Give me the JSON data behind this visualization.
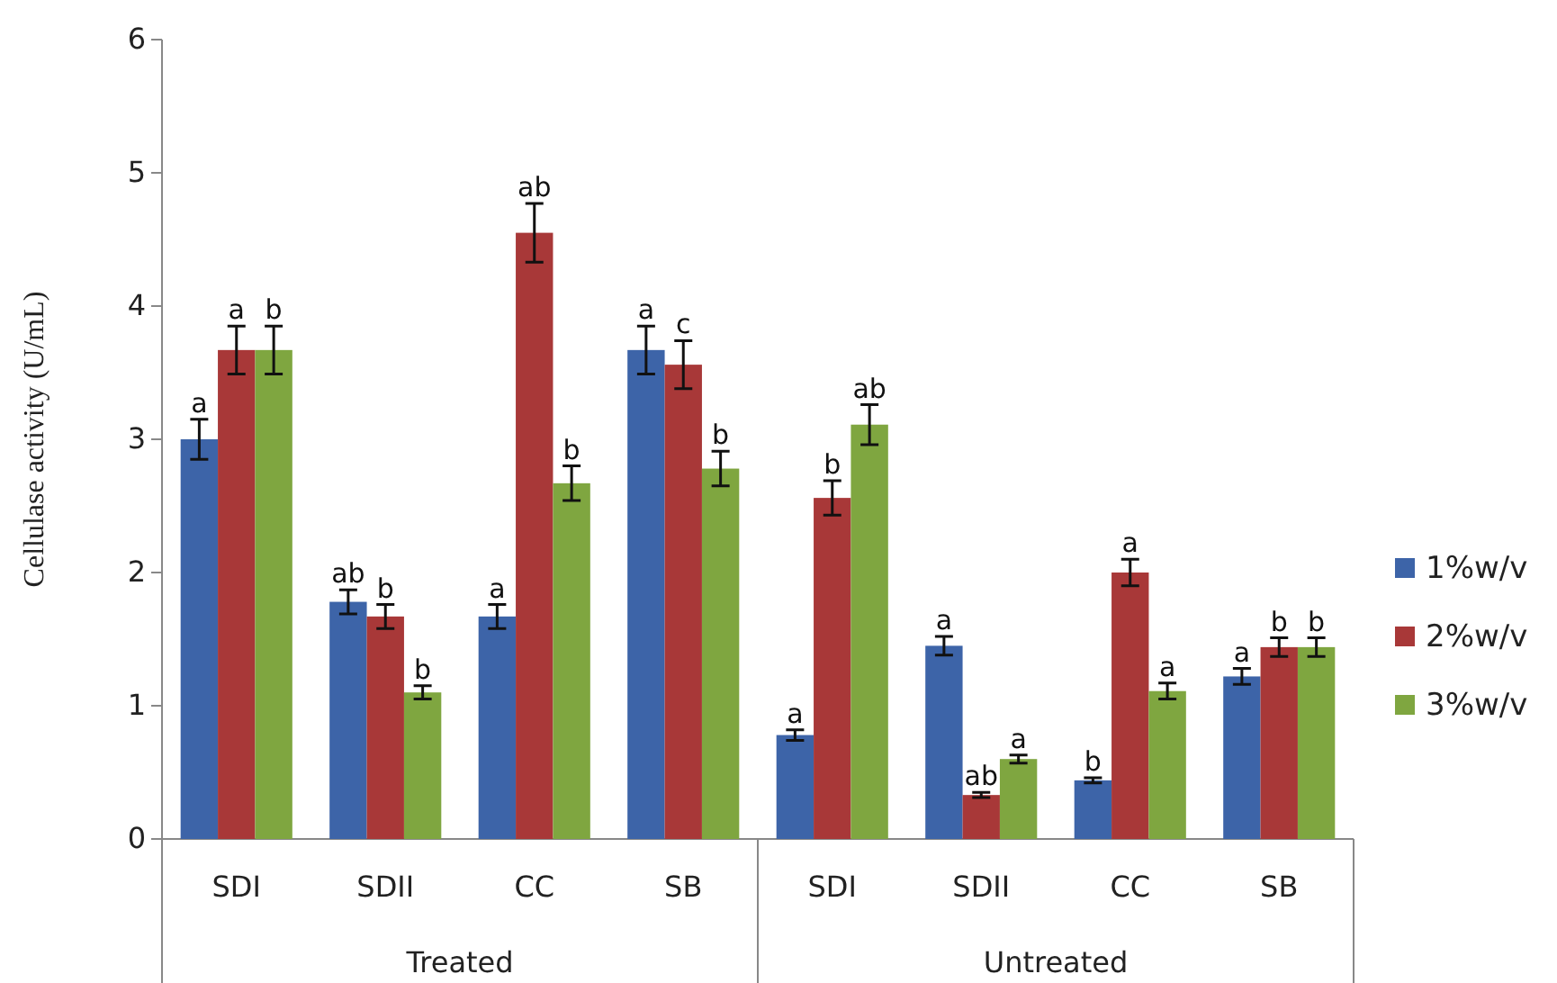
{
  "chart_data": {
    "type": "bar",
    "ylabel": "Cellulase activity (U/mL)",
    "categories": [
      "SDI",
      "SDII",
      "CC",
      "SB",
      "SDI",
      "SDII",
      "CC",
      "SB"
    ],
    "annotations": [
      "Treated",
      "Untreated"
    ],
    "series": [
      {
        "name": "1%w/v",
        "color": "#3d64a8",
        "values": [
          3.0,
          1.78,
          1.67,
          3.67,
          0.78,
          1.45,
          0.44,
          1.22
        ],
        "errors": [
          0.15,
          0.09,
          0.09,
          0.18,
          0.04,
          0.07,
          0.02,
          0.06
        ],
        "value_labels": [
          "a",
          "ab",
          "a",
          "a",
          "a",
          "a",
          "b",
          "a"
        ]
      },
      {
        "name": "2%w/v",
        "color": "#a83838",
        "values": [
          3.67,
          1.67,
          4.55,
          3.56,
          2.56,
          0.33,
          2.0,
          1.44
        ],
        "errors": [
          0.18,
          0.09,
          0.22,
          0.18,
          0.13,
          0.02,
          0.1,
          0.07
        ],
        "value_labels": [
          "a",
          "b",
          "ab",
          "c",
          "b",
          "ab",
          "a",
          "b"
        ]
      },
      {
        "name": "3%w/v",
        "color": "#7fa640",
        "values": [
          3.67,
          1.1,
          2.67,
          2.78,
          3.11,
          0.6,
          1.11,
          1.44
        ],
        "errors": [
          0.18,
          0.05,
          0.13,
          0.13,
          0.15,
          0.03,
          0.06,
          0.07
        ],
        "value_labels": [
          "b",
          "b",
          "b",
          "b",
          "ab",
          "a",
          "a",
          "b"
        ]
      }
    ],
    "ylim": [
      0,
      6
    ],
    "yticks": [
      0,
      1,
      2,
      3,
      4,
      5,
      6
    ],
    "legend": "right"
  }
}
